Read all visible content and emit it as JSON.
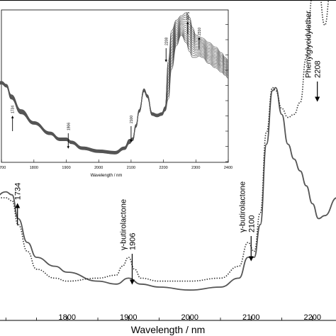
{
  "chart_data": [
    {
      "type": "line",
      "xlabel": "Wavelength / nm",
      "ylabel": "",
      "xlim": [
        1680,
        2250
      ],
      "xticks": [
        1800,
        1900,
        2000,
        2100,
        2200
      ],
      "series": [
        {
          "style": "solid",
          "x": [
            1680,
            1700,
            1710,
            1720,
            1735,
            1750,
            1780,
            1800,
            1850,
            1880,
            1900,
            1920,
            1950,
            2000,
            2050,
            2080,
            2095,
            2105,
            2115,
            2125,
            2135,
            2140,
            2150,
            2160,
            2170,
            2180,
            2190,
            2200,
            2210,
            2220,
            2240,
            2250
          ],
          "y": [
            0.3,
            0.32,
            0.31,
            0.23,
            0.15,
            0.1,
            0.07,
            0.05,
            0.02,
            0.01,
            0.03,
            0.01,
            0.0,
            -0.01,
            0.0,
            0.03,
            0.1,
            0.1,
            0.21,
            0.48,
            0.66,
            0.67,
            0.58,
            0.48,
            0.43,
            0.39,
            0.34,
            0.28,
            0.23,
            0.24,
            0.3,
            0.55
          ]
        },
        {
          "style": "dotted",
          "x": [
            1680,
            1700,
            1710,
            1720,
            1735,
            1750,
            1780,
            1800,
            1850,
            1880,
            1890,
            1900,
            1910,
            1920,
            1950,
            2000,
            2050,
            2080,
            2095,
            2105,
            2115,
            2125,
            2135,
            2140,
            2150,
            2160,
            2170,
            2180,
            2190,
            2200,
            2205,
            2210,
            2220,
            2230,
            2240,
            2250
          ],
          "y": [
            0.3,
            0.3,
            0.29,
            0.21,
            0.12,
            0.06,
            0.03,
            0.02,
            0.03,
            0.04,
            0.07,
            0.1,
            0.06,
            0.03,
            0.02,
            0.02,
            0.03,
            0.07,
            0.15,
            0.12,
            0.25,
            0.52,
            0.67,
            0.66,
            0.6,
            0.57,
            0.58,
            0.62,
            0.77,
            0.98,
            1.06,
            1.0,
            0.88,
            1.0,
            1.15,
            1.3
          ]
        }
      ],
      "annotations": [
        {
          "label": "1734",
          "x": 1734,
          "direction": "up"
        },
        {
          "label": "γ-butirolactone",
          "value": "1906",
          "x": 1906,
          "direction": "down"
        },
        {
          "label": "γ-butirolactone",
          "value": "2100",
          "x": 2100,
          "direction": "down"
        },
        {
          "label": "Phenylglycidylether",
          "value": "2208",
          "x": 2208,
          "direction": "down"
        }
      ]
    },
    {
      "type": "line",
      "description_role": "inset",
      "xlabel": "Wavelength / nm",
      "ylabel": "",
      "xlim": [
        1680,
        2400
      ],
      "xticks": [
        1700,
        1800,
        1900,
        2000,
        2100,
        2200,
        2300,
        2400
      ],
      "series_count": 15,
      "envelope": {
        "x": [
          1680,
          1700,
          1715,
          1730,
          1760,
          1800,
          1850,
          1880,
          1900,
          1915,
          1950,
          2000,
          2050,
          2080,
          2095,
          2105,
          2115,
          2125,
          2140,
          2150,
          2165,
          2180,
          2195,
          2205,
          2215,
          2225,
          2240,
          2255,
          2270,
          2280,
          2290,
          2300,
          2310,
          2320,
          2340,
          2360,
          2380,
          2390,
          2400
        ],
        "y_low": [
          0.51,
          0.52,
          0.5,
          0.42,
          0.32,
          0.25,
          0.18,
          0.14,
          0.14,
          0.12,
          0.08,
          0.06,
          0.05,
          0.08,
          0.12,
          0.14,
          0.23,
          0.33,
          0.47,
          0.43,
          0.31,
          0.3,
          0.31,
          0.34,
          0.42,
          0.62,
          0.78,
          0.85,
          0.8,
          0.74,
          0.7,
          0.7,
          0.71,
          0.7,
          0.66,
          0.63,
          0.6,
          0.58,
          0.56
        ],
        "y_high": [
          0.53,
          0.54,
          0.52,
          0.45,
          0.35,
          0.27,
          0.2,
          0.16,
          0.16,
          0.14,
          0.1,
          0.08,
          0.07,
          0.1,
          0.15,
          0.16,
          0.25,
          0.35,
          0.49,
          0.45,
          0.33,
          0.32,
          0.33,
          0.37,
          0.68,
          0.88,
          0.95,
          0.98,
          1.0,
          0.97,
          0.9,
          0.85,
          0.84,
          0.83,
          0.8,
          0.77,
          0.73,
          0.7,
          0.68
        ]
      },
      "annotations": [
        {
          "label": "1734",
          "x": 1734,
          "direction": "up"
        },
        {
          "label": "1906",
          "x": 1906,
          "direction": "down"
        },
        {
          "label": "2100",
          "x": 2100,
          "direction": "down"
        },
        {
          "label": "2208",
          "x": 2208,
          "direction": "down"
        },
        {
          "label": "2275",
          "x": 2275,
          "direction": "up"
        },
        {
          "label": "2310",
          "x": 2310,
          "direction": "up"
        }
      ]
    }
  ]
}
